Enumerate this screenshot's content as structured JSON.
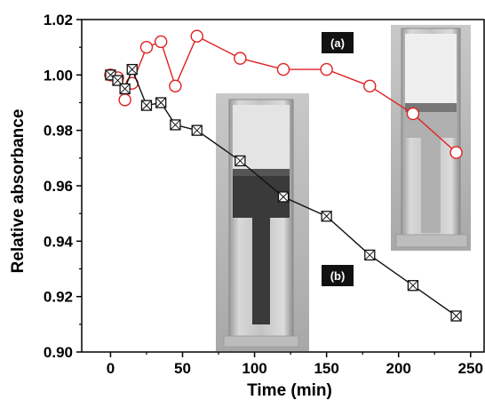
{
  "chart_data": {
    "type": "line",
    "xlabel": "Time (min)",
    "ylabel": "Relative absorbance",
    "xlim": [
      -20,
      260
    ],
    "ylim": [
      0.9,
      1.02
    ],
    "x_ticks": [
      0,
      50,
      100,
      150,
      200,
      250
    ],
    "y_ticks": [
      0.9,
      0.92,
      0.94,
      0.96,
      0.98,
      1.0,
      1.02
    ],
    "x_tick_labels": [
      "0",
      "50",
      "100",
      "150",
      "200",
      "250"
    ],
    "y_tick_labels": [
      "0.90",
      "0.92",
      "0.94",
      "0.96",
      "0.98",
      "1.00",
      "1.02"
    ],
    "series": [
      {
        "label_box": "(a)",
        "color": "#e02020",
        "marker": "open-circle",
        "x": [
          0,
          5,
          10,
          15,
          25,
          35,
          45,
          60,
          90,
          120,
          150,
          180,
          210,
          240
        ],
        "y": [
          1.0,
          0.999,
          0.991,
          0.997,
          1.01,
          1.012,
          0.996,
          1.014,
          1.006,
          1.002,
          1.002,
          0.996,
          0.986,
          0.972
        ]
      },
      {
        "label_box": "(b)",
        "color": "#111111",
        "marker": "crossed-square",
        "x": [
          0,
          5,
          10,
          15,
          25,
          35,
          45,
          60,
          90,
          120,
          150,
          180,
          210,
          240
        ],
        "y": [
          1.0,
          0.998,
          0.995,
          1.002,
          0.989,
          0.99,
          0.982,
          0.98,
          0.969,
          0.956,
          0.949,
          0.935,
          0.924,
          0.913
        ]
      }
    ],
    "insets": [
      {
        "name": "inset-photo-b",
        "description_icon": "cuvette-dark-solution-photo"
      },
      {
        "name": "inset-photo-a",
        "description_icon": "cuvette-clear-solution-photo"
      }
    ]
  }
}
